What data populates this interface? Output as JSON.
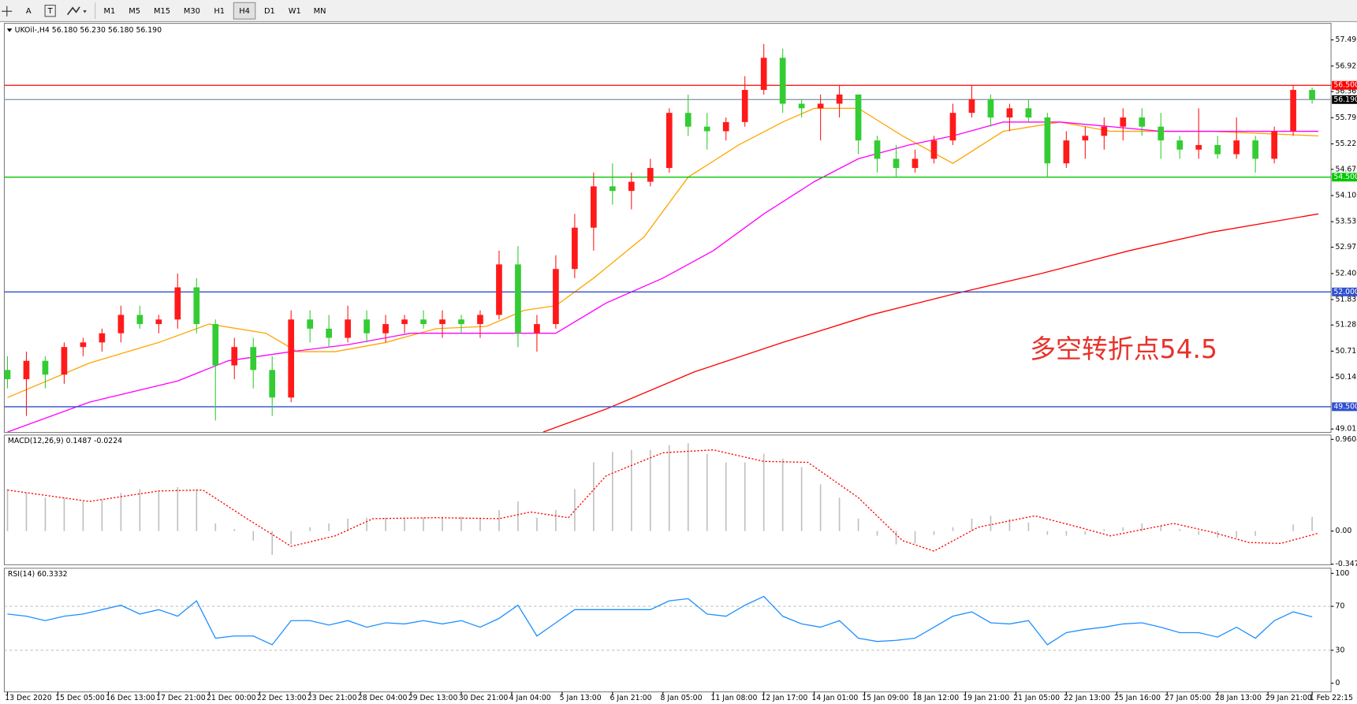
{
  "toolbar": {
    "text_tool": "A",
    "timeframes": [
      "M1",
      "M5",
      "M15",
      "M30",
      "H1",
      "H4",
      "D1",
      "W1",
      "MN"
    ],
    "active": "H4"
  },
  "chart_data": [
    {
      "type": "candlestick",
      "title": "UKOil-,H4 56.180 56.230 56.180 56.190",
      "annotation": "多空转折点54.5",
      "x": [
        0,
        3,
        6,
        9,
        12,
        15,
        18,
        21,
        24,
        27,
        30,
        33,
        36,
        39,
        42,
        45,
        48,
        51,
        54,
        57,
        60,
        63,
        66,
        69,
        72,
        75,
        78,
        81,
        84,
        87,
        90,
        93,
        96,
        99,
        102,
        105,
        108,
        111,
        114,
        117,
        120,
        123,
        126,
        129,
        132,
        135,
        138,
        141,
        144,
        147,
        150,
        153,
        156,
        159,
        162,
        165,
        168,
        171,
        174,
        177,
        180,
        183,
        186,
        189,
        192,
        195,
        198,
        201,
        204,
        207
      ],
      "open": [
        50.3,
        50.1,
        50.5,
        50.2,
        50.8,
        50.9,
        51.1,
        51.5,
        51.3,
        51.4,
        52.1,
        51.3,
        50.4,
        50.8,
        50.3,
        49.7,
        51.4,
        51.2,
        51.0,
        51.4,
        51.1,
        51.3,
        51.4,
        51.3,
        51.4,
        51.3,
        51.5,
        52.6,
        51.1,
        51.3,
        52.5,
        53.4,
        54.3,
        54.2,
        54.4,
        54.7,
        55.9,
        55.6,
        55.5,
        55.7,
        56.4,
        57.1,
        56.1,
        56.0,
        56.1,
        56.3,
        55.3,
        54.9,
        54.7,
        54.9,
        55.3,
        55.9,
        56.2,
        55.8,
        56.0,
        55.8,
        54.8,
        55.3,
        55.4,
        55.6,
        55.8,
        55.6,
        55.3,
        55.1,
        55.2,
        55.0,
        55.3,
        54.9,
        55.5,
        56.4
      ],
      "high": [
        50.6,
        50.7,
        50.6,
        50.9,
        51.0,
        51.2,
        51.7,
        51.7,
        51.5,
        52.4,
        52.3,
        51.4,
        51.0,
        51.0,
        50.6,
        51.6,
        51.6,
        51.5,
        51.7,
        51.6,
        51.5,
        51.5,
        51.6,
        51.6,
        51.5,
        51.6,
        52.9,
        53.0,
        51.5,
        52.8,
        53.7,
        54.6,
        54.8,
        54.6,
        54.9,
        56.0,
        56.3,
        55.9,
        55.8,
        56.7,
        57.4,
        57.3,
        56.2,
        56.3,
        56.5,
        56.3,
        55.4,
        55.2,
        55.1,
        55.4,
        56.1,
        56.5,
        56.3,
        56.1,
        56.2,
        55.9,
        55.5,
        55.6,
        55.8,
        56.0,
        56.0,
        55.9,
        55.4,
        56.0,
        55.4,
        55.8,
        55.4,
        55.6,
        56.5,
        56.45
      ],
      "low": [
        49.9,
        49.3,
        49.9,
        50.0,
        50.6,
        50.7,
        50.9,
        51.2,
        51.1,
        51.2,
        51.1,
        49.2,
        50.1,
        49.9,
        49.3,
        49.6,
        50.9,
        50.8,
        50.9,
        50.9,
        50.9,
        51.1,
        51.2,
        51.0,
        51.1,
        51.0,
        51.4,
        50.8,
        50.7,
        51.2,
        52.3,
        52.9,
        53.9,
        53.8,
        54.3,
        54.6,
        55.4,
        55.1,
        55.3,
        55.6,
        56.3,
        55.9,
        55.8,
        55.3,
        55.8,
        55.0,
        54.6,
        54.5,
        54.6,
        54.8,
        55.2,
        55.8,
        55.6,
        55.5,
        55.7,
        54.5,
        54.7,
        54.9,
        55.1,
        55.3,
        55.4,
        54.9,
        54.9,
        54.9,
        54.9,
        54.9,
        54.6,
        54.8,
        55.4,
        56.1
      ],
      "close": [
        50.1,
        50.5,
        50.2,
        50.8,
        50.9,
        51.1,
        51.5,
        51.3,
        51.4,
        52.1,
        51.3,
        50.4,
        50.8,
        50.3,
        49.7,
        51.4,
        51.2,
        51.0,
        51.4,
        51.1,
        51.3,
        51.4,
        51.3,
        51.4,
        51.3,
        51.5,
        52.6,
        51.1,
        51.3,
        52.5,
        53.4,
        54.3,
        54.2,
        54.4,
        54.7,
        55.9,
        55.6,
        55.5,
        55.7,
        56.4,
        57.1,
        56.1,
        56.0,
        56.1,
        56.3,
        55.3,
        54.9,
        54.7,
        54.9,
        55.3,
        55.9,
        56.2,
        55.8,
        56.0,
        55.8,
        54.8,
        55.3,
        55.4,
        55.6,
        55.8,
        55.6,
        55.3,
        55.1,
        55.2,
        55.0,
        55.3,
        54.9,
        55.5,
        56.4,
        56.19
      ],
      "up_color": "#ff1a1a",
      "down_color": "#33cc33",
      "xlim": [
        -0.5,
        210
      ],
      "xticks": [
        {
          "value": 0,
          "label": "13 Dec 2020"
        },
        {
          "value": 8,
          "label": "15 Dec 05:00"
        },
        {
          "value": 16,
          "label": "16 Dec 13:00"
        },
        {
          "value": 24,
          "label": "17 Dec 21:00"
        },
        {
          "value": 32,
          "label": "21 Dec 00:00"
        },
        {
          "value": 40,
          "label": "22 Dec 13:00"
        },
        {
          "value": 48,
          "label": "23 Dec 21:00"
        },
        {
          "value": 56,
          "label": "28 Dec 04:00"
        },
        {
          "value": 64,
          "label": "29 Dec 13:00"
        },
        {
          "value": 72,
          "label": "30 Dec 21:00"
        },
        {
          "value": 80,
          "label": "4 Jan 04:00"
        },
        {
          "value": 88,
          "label": "5 Jan 13:00"
        },
        {
          "value": 96,
          "label": "6 Jan 21:00"
        },
        {
          "value": 104,
          "label": "8 Jan 05:00"
        },
        {
          "value": 112,
          "label": "11 Jan 08:00"
        },
        {
          "value": 120,
          "label": "12 Jan 17:00"
        },
        {
          "value": 128,
          "label": "14 Jan 01:00"
        },
        {
          "value": 136,
          "label": "15 Jan 09:00"
        },
        {
          "value": 144,
          "label": "18 Jan 12:00"
        },
        {
          "value": 152,
          "label": "19 Jan 21:00"
        },
        {
          "value": 160,
          "label": "21 Jan 05:00"
        },
        {
          "value": 168,
          "label": "22 Jan 13:00"
        },
        {
          "value": 176,
          "label": "25 Jan 16:00"
        },
        {
          "value": 184,
          "label": "27 Jan 05:00"
        },
        {
          "value": 192,
          "label": "28 Jan 13:00"
        },
        {
          "value": 200,
          "label": "29 Jan 21:00"
        },
        {
          "value": 207,
          "label": "1 Feb 22:15"
        }
      ],
      "ylim": [
        48.94,
        57.85
      ],
      "yticks": [
        {
          "value": 57.49,
          "label": "57.490"
        },
        {
          "value": 56.92,
          "label": "56.920"
        },
        {
          "value": 56.365,
          "label": "56.365"
        },
        {
          "value": 55.795,
          "label": "55.795"
        },
        {
          "value": 55.225,
          "label": "55.225"
        },
        {
          "value": 54.67,
          "label": "54.670"
        },
        {
          "value": 54.1,
          "label": "54.100"
        },
        {
          "value": 53.53,
          "label": "53.530"
        },
        {
          "value": 52.975,
          "label": "52.975"
        },
        {
          "value": 52.4,
          "label": "52.400"
        },
        {
          "value": 51.835,
          "label": "51.835"
        },
        {
          "value": 51.28,
          "label": "51.280"
        },
        {
          "value": 50.71,
          "label": "50.710"
        },
        {
          "value": 50.14,
          "label": "50.140"
        },
        {
          "value": 49.015,
          "label": "49.015"
        }
      ],
      "hlines": [
        {
          "value": 56.5,
          "label": "56.500",
          "color": "#ff0000"
        },
        {
          "value": 56.19,
          "label": "56.190",
          "color": "#8e9bb0",
          "label_color": "#000000"
        },
        {
          "value": 54.5,
          "label": "54.500",
          "color": "#00c800"
        },
        {
          "value": 52.0,
          "label": "52.000",
          "color": "#2f4fd0"
        },
        {
          "value": 49.5,
          "label": "49.500",
          "color": "#2f4fd0"
        }
      ],
      "lines": [
        {
          "color": "#ffa500",
          "x": [
            0,
            13,
            24,
            32,
            41,
            46,
            52,
            60,
            68,
            76,
            82,
            87,
            93,
            101,
            108,
            116,
            123,
            128,
            135,
            142,
            150,
            158,
            167,
            175,
            183,
            191,
            208
          ],
          "values": [
            49.7,
            50.45,
            50.9,
            51.3,
            51.1,
            50.7,
            50.7,
            50.9,
            51.2,
            51.25,
            51.6,
            51.7,
            52.3,
            53.2,
            54.5,
            55.2,
            55.7,
            56.0,
            56.0,
            55.4,
            54.8,
            55.5,
            55.7,
            55.5,
            55.5,
            55.5,
            55.4
          ]
        },
        {
          "color": "#ff00ff",
          "x": [
            0,
            13,
            27,
            35,
            45,
            54,
            64,
            76,
            87,
            95,
            104,
            112,
            120,
            128,
            135,
            143,
            150,
            158,
            167,
            175,
            183,
            191,
            200,
            208
          ],
          "values": [
            48.95,
            49.6,
            50.06,
            50.5,
            50.7,
            50.85,
            51.1,
            51.1,
            51.1,
            51.76,
            52.3,
            52.9,
            53.7,
            54.4,
            54.9,
            55.2,
            55.4,
            55.7,
            55.7,
            55.6,
            55.5,
            55.5,
            55.5,
            55.5
          ]
        },
        {
          "color": "#ff0000",
          "x": [
            85,
            95,
            109,
            123,
            137,
            150,
            164,
            178,
            191,
            208
          ],
          "values": [
            48.95,
            49.45,
            50.26,
            50.9,
            51.5,
            51.95,
            52.4,
            52.9,
            53.3,
            53.7
          ]
        }
      ]
    },
    {
      "type": "bar",
      "title": "MACD(12,26,9) 0.1487 -0.0224",
      "color": "#c0c0c0",
      "values": [
        0.44,
        0.4,
        0.35,
        0.35,
        0.31,
        0.33,
        0.4,
        0.44,
        0.42,
        0.46,
        0.44,
        0.08,
        0.02,
        -0.1,
        -0.25,
        -0.14,
        0.04,
        0.08,
        0.13,
        0.14,
        0.14,
        0.14,
        0.14,
        0.15,
        0.15,
        0.14,
        0.22,
        0.31,
        0.14,
        0.22,
        0.44,
        0.72,
        0.83,
        0.85,
        0.85,
        0.9,
        0.92,
        0.81,
        0.72,
        0.72,
        0.81,
        0.76,
        0.67,
        0.49,
        0.35,
        0.13,
        -0.05,
        -0.14,
        -0.13,
        -0.04,
        0.04,
        0.13,
        0.16,
        0.13,
        0.09,
        -0.04,
        -0.05,
        -0.04,
        0.02,
        0.04,
        0.08,
        0.06,
        0.02,
        -0.04,
        -0.07,
        -0.07,
        -0.05,
        0.0,
        0.07,
        0.1487
      ],
      "signal": {
        "color": "#ff0000",
        "x": [
          0,
          13,
          24,
          31,
          38,
          45,
          52,
          58,
          68,
          78,
          83,
          89,
          95,
          104,
          112,
          120,
          127,
          135,
          142,
          147,
          154,
          163,
          170,
          175,
          185,
          191,
          197,
          202,
          208
        ],
        "values": [
          0.43,
          0.31,
          0.42,
          0.43,
          0.13,
          -0.16,
          -0.05,
          0.13,
          0.14,
          0.13,
          0.2,
          0.14,
          0.58,
          0.82,
          0.85,
          0.73,
          0.72,
          0.35,
          -0.1,
          -0.21,
          0.04,
          0.16,
          0.04,
          -0.05,
          0.08,
          -0.01,
          -0.12,
          -0.13,
          -0.0224
        ]
      },
      "ylim": [
        -0.353,
        1.006
      ],
      "yticks": [
        {
          "value": 0.9604,
          "label": "0.9604"
        },
        {
          "value": 0,
          "label": "0.00"
        },
        {
          "value": -0.347,
          "label": "-0.347"
        }
      ]
    },
    {
      "type": "line",
      "title": "RSI(14) 60.3332",
      "color": "#1e90ff",
      "values": [
        63,
        61,
        57,
        61,
        63,
        67,
        71,
        63,
        67,
        61,
        75,
        41,
        43,
        43,
        35,
        57,
        57,
        53,
        57,
        51,
        55,
        54,
        57,
        54,
        57,
        51,
        59,
        71,
        43,
        55,
        67,
        67,
        67,
        67,
        67,
        75,
        77,
        63,
        61,
        71,
        79,
        61,
        54,
        51,
        57,
        41,
        38,
        39,
        41,
        51,
        61,
        65,
        55,
        54,
        57,
        35,
        46,
        49,
        51,
        54,
        55,
        51,
        46,
        46,
        42,
        51,
        41,
        57,
        65,
        60.3332
      ],
      "ylim": [
        -7.9,
        104.7
      ],
      "yticks": [
        100,
        70,
        30,
        0
      ],
      "levels": [
        70,
        30
      ]
    }
  ]
}
